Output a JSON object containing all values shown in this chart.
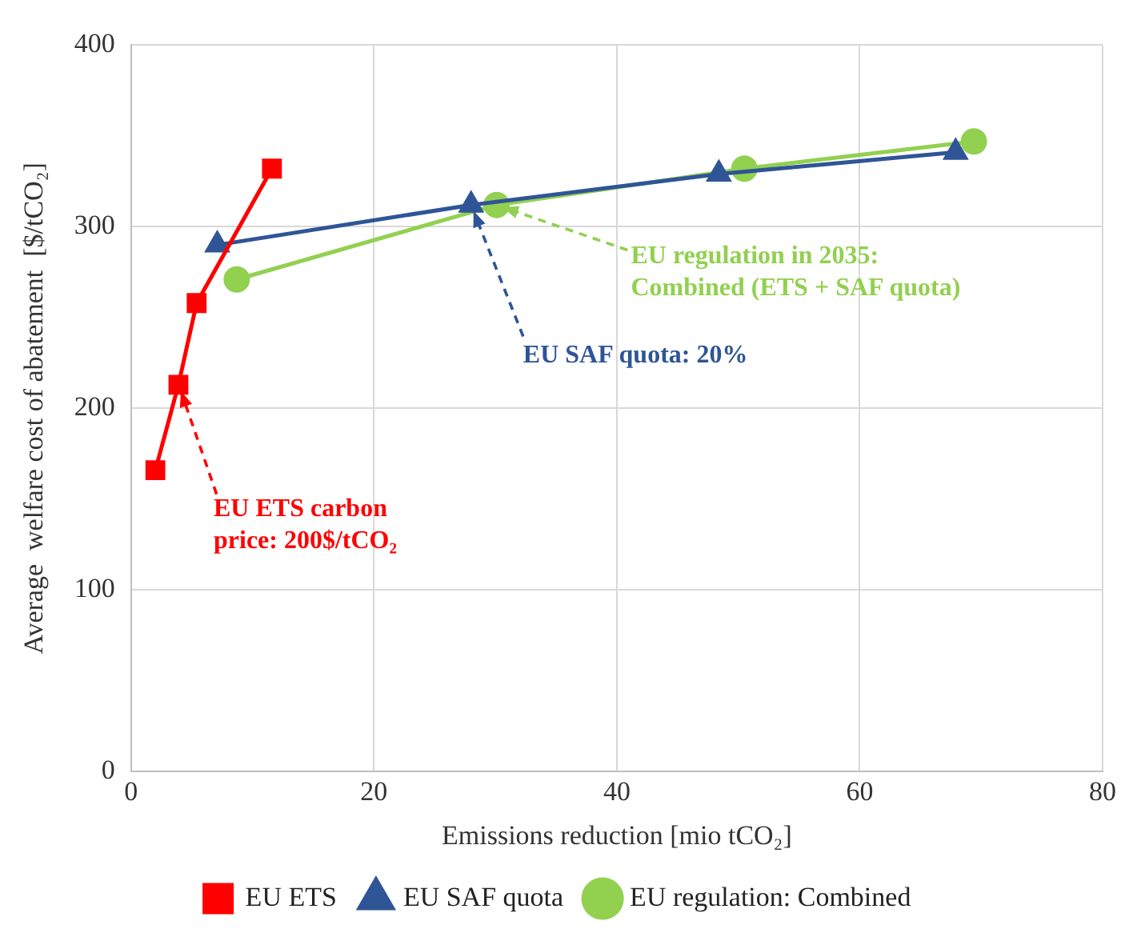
{
  "chart_data": {
    "type": "line",
    "xlabel": "Emissions reduction [mio tCO₂]",
    "ylabel": "Average  welfare cost of abatement  [$/tCO₂]",
    "xlim": [
      0,
      80
    ],
    "xticks": [
      0,
      20,
      40,
      60,
      80
    ],
    "ylim": [
      0,
      400
    ],
    "yticks": [
      0,
      100,
      200,
      300,
      400
    ],
    "grid": true,
    "legend": "bottom",
    "series": [
      {
        "name": "EU ETS",
        "color": "#ff0000",
        "marker": "square",
        "x": [
          2.0,
          3.9,
          5.4,
          11.6
        ],
        "values": [
          166,
          213,
          258,
          332
        ]
      },
      {
        "name": "EU SAF quota",
        "color": "#2f5597",
        "marker": "triangle",
        "x": [
          7.1,
          28.0,
          48.4,
          67.9
        ],
        "values": [
          290,
          312,
          329,
          341
        ]
      },
      {
        "name": "EU regulation: Combined",
        "color": "#92d050",
        "marker": "circle",
        "x": [
          8.7,
          30.1,
          50.5,
          69.4
        ],
        "values": [
          271,
          312,
          332,
          347
        ]
      }
    ],
    "annotations": [
      "EU ETS carbon\nprice: 200$/tCO₂",
      "EU SAF quota: 20%",
      "EU regulation in 2035:\nCombined (ETS + SAF quota)"
    ]
  }
}
